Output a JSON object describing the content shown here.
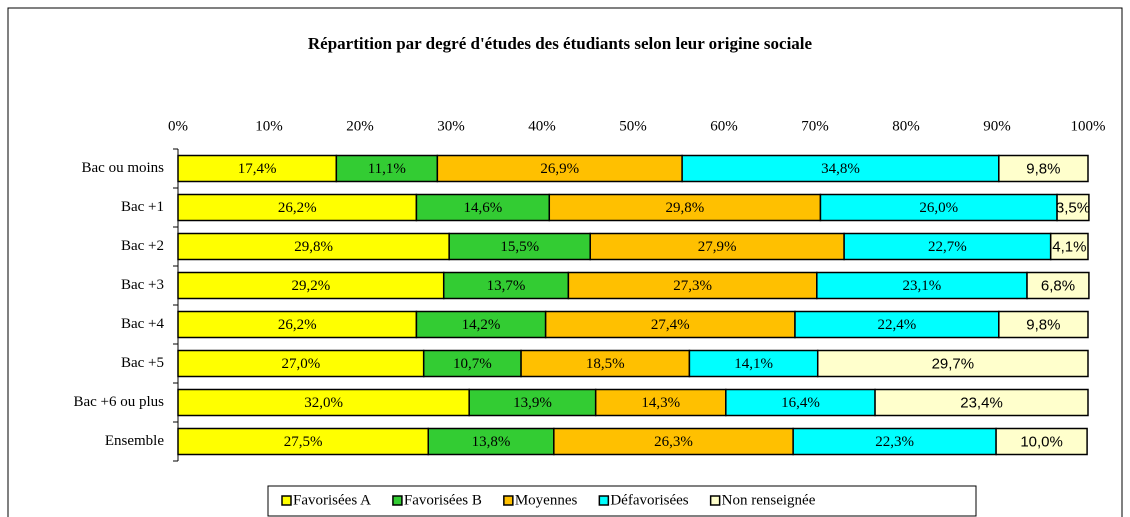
{
  "chart_data": {
    "type": "bar",
    "orientation": "horizontal",
    "stacked": true,
    "title": "Répartition par degré d'études des étudiants selon leur origine sociale",
    "categories": [
      "Bac ou moins",
      "Bac +1",
      "Bac +2",
      "Bac +3",
      "Bac +4",
      "Bac +5",
      "Bac +6 ou plus",
      "Ensemble"
    ],
    "series": [
      {
        "name": "Favorisées A",
        "color": "#ffff00",
        "values": [
          17.4,
          26.2,
          29.8,
          29.2,
          26.2,
          27.0,
          32.0,
          27.5
        ],
        "value_labels": [
          "17,4%",
          "26,2%",
          "29,8%",
          "29,2%",
          "26,2%",
          "27,0%",
          "32,0%",
          "27,5%"
        ]
      },
      {
        "name": "Favorisées B",
        "color": "#33cc33",
        "values": [
          11.1,
          14.6,
          15.5,
          13.7,
          14.2,
          10.7,
          13.9,
          13.8
        ],
        "value_labels": [
          "11,1%",
          "14,6%",
          "15,5%",
          "13,7%",
          "14,2%",
          "10,7%",
          "13,9%",
          "13,8%"
        ]
      },
      {
        "name": "Moyennes",
        "color": "#ffc000",
        "values": [
          26.9,
          29.8,
          27.9,
          27.3,
          27.4,
          18.5,
          14.3,
          26.3
        ],
        "value_labels": [
          "26,9%",
          "29,8%",
          "27,9%",
          "27,3%",
          "27,4%",
          "18,5%",
          "14,3%",
          "26,3%"
        ]
      },
      {
        "name": "Défavorisées",
        "color": "#00ffff",
        "values": [
          34.8,
          26.0,
          22.7,
          23.1,
          22.4,
          14.1,
          16.4,
          22.3
        ],
        "value_labels": [
          "34,8%",
          "26,0%",
          "22,7%",
          "23,1%",
          "22,4%",
          "14,1%",
          "16,4%",
          "22,3%"
        ]
      },
      {
        "name": "Non renseignée",
        "color": "#ffffcc",
        "values": [
          9.8,
          3.5,
          4.1,
          6.8,
          9.8,
          29.7,
          23.4,
          10.0
        ],
        "value_labels": [
          "9,8%",
          "3,5%",
          "4,1%",
          "6,8%",
          "9,8%",
          "29,7%",
          "23,4%",
          "10,0%"
        ]
      }
    ],
    "xlim": [
      0,
      100
    ],
    "xticks": [
      {
        "value": 0,
        "label": "0%"
      },
      {
        "value": 10,
        "label": "10%"
      },
      {
        "value": 20,
        "label": "20%"
      },
      {
        "value": 30,
        "label": "30%"
      },
      {
        "value": 40,
        "label": "40%"
      },
      {
        "value": 50,
        "label": "50%"
      },
      {
        "value": 60,
        "label": "60%"
      },
      {
        "value": 70,
        "label": "70%"
      },
      {
        "value": 80,
        "label": "80%"
      },
      {
        "value": 90,
        "label": "90%"
      },
      {
        "value": 100,
        "label": "100%"
      }
    ],
    "legend": "bottom"
  }
}
